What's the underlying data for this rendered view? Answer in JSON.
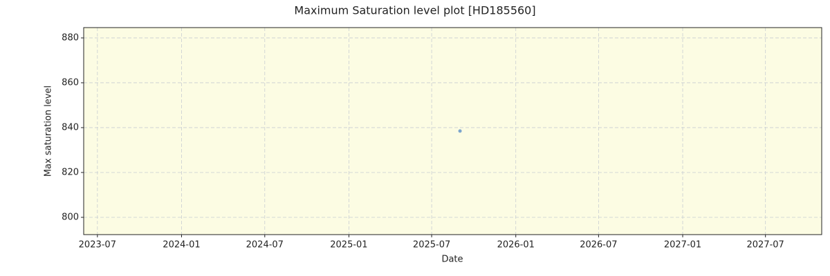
{
  "chart_data": {
    "type": "scatter",
    "title": "Maximum Saturation level plot [HD185560]",
    "xlabel": "Date",
    "ylabel": "Max saturation level",
    "x": [
      "2025-09"
    ],
    "values": [
      838.5
    ],
    "color": "#5b8fc7",
    "background": "#fcfce3",
    "xlim": [
      "2023-06",
      "2027-11"
    ],
    "xticks": [
      "2023-07",
      "2024-01",
      "2024-07",
      "2025-01",
      "2025-07",
      "2026-01",
      "2026-07",
      "2027-01",
      "2027-07"
    ],
    "ylim": [
      792.3,
      884.6
    ],
    "yticks": [
      800,
      820,
      840,
      860,
      880
    ],
    "grid": true
  }
}
